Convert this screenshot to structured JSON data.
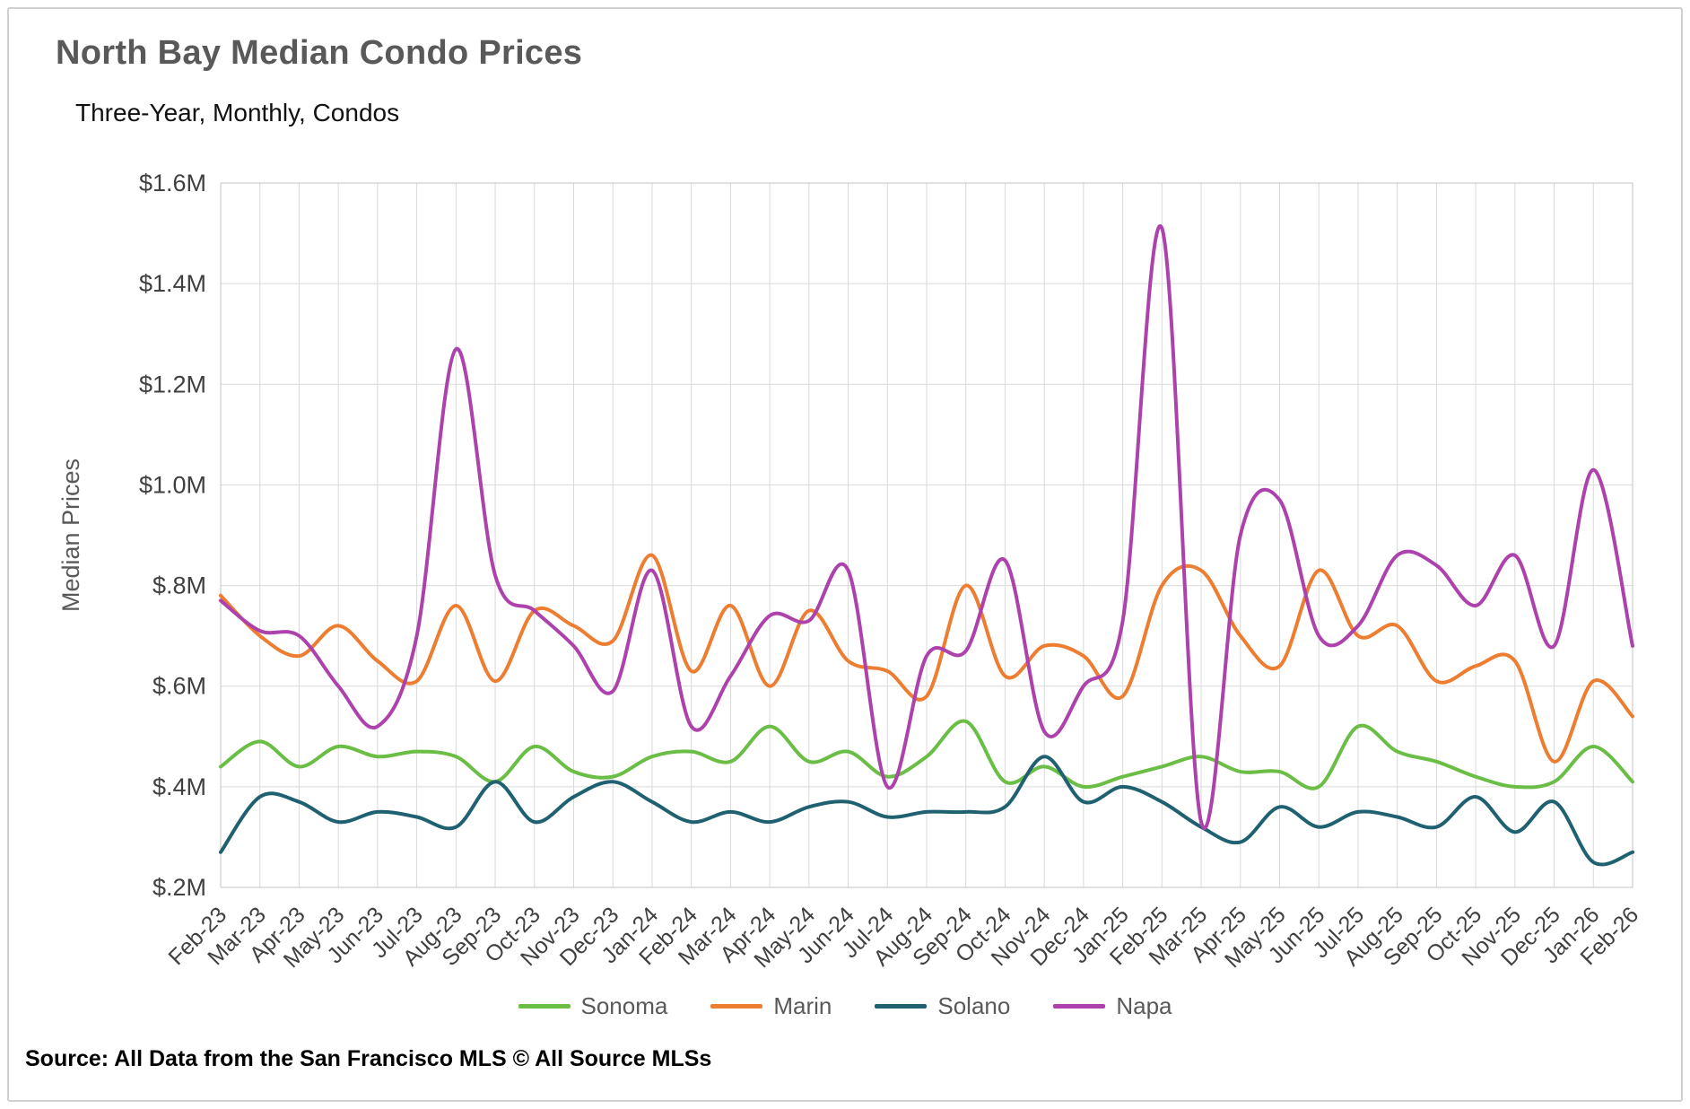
{
  "title": "North Bay Median Condo Prices",
  "subtitle": "Three-Year, Monthly, Condos",
  "source": "Source: All Data from the San Francisco MLS © All Source MLSs",
  "chart_data": {
    "type": "line",
    "title": "North Bay Median Condo Prices",
    "subtitle": "Three-Year, Monthly, Condos",
    "xlabel": "",
    "ylabel": "Median Prices",
    "y_unit": "millions USD",
    "ylim": [
      0.2,
      1.6
    ],
    "grid": true,
    "smooth_lines": true,
    "legend_position": "bottom",
    "gridline_color": "#d9d9d9",
    "tick_label_color": "#404040",
    "axis_title_color": "#595959",
    "ytick_values": [
      0.2,
      0.4,
      0.6,
      0.8,
      1.0,
      1.2,
      1.4,
      1.6
    ],
    "ytick_labels": [
      "$.2M",
      "$.4M",
      "$.6M",
      "$.8M",
      "$1.0M",
      "$1.2M",
      "$1.4M",
      "$1.6M"
    ],
    "categories": [
      "Feb-23",
      "Mar-23",
      "Apr-23",
      "May-23",
      "Jun-23",
      "Jul-23",
      "Aug-23",
      "Sep-23",
      "Oct-23",
      "Nov-23",
      "Dec-23",
      "Jan-24",
      "Feb-24",
      "Mar-24",
      "Apr-24",
      "May-24",
      "Jun-24",
      "Jul-24",
      "Aug-24",
      "Sep-24",
      "Oct-24",
      "Nov-24",
      "Dec-24",
      "Jan-25",
      "Feb-25",
      "Mar-25",
      "Apr-25",
      "May-25",
      "Jun-25",
      "Jul-25",
      "Aug-25",
      "Sep-25",
      "Oct-25",
      "Nov-25",
      "Dec-25",
      "Jan-26",
      "Feb-26"
    ],
    "series": [
      {
        "name": "Sonoma",
        "color": "#6BBE45",
        "values": [
          0.44,
          0.49,
          0.44,
          0.48,
          0.46,
          0.47,
          0.46,
          0.41,
          0.48,
          0.43,
          0.42,
          0.46,
          0.47,
          0.45,
          0.52,
          0.45,
          0.47,
          0.42,
          0.46,
          0.53,
          0.41,
          0.44,
          0.4,
          0.42,
          0.44,
          0.46,
          0.43,
          0.43,
          0.4,
          0.52,
          0.47,
          0.45,
          0.42,
          0.4,
          0.41,
          0.48,
          0.41
        ]
      },
      {
        "name": "Marin",
        "color": "#ED7D31",
        "values": [
          0.78,
          0.7,
          0.66,
          0.72,
          0.65,
          0.61,
          0.76,
          0.61,
          0.75,
          0.72,
          0.69,
          0.86,
          0.63,
          0.76,
          0.6,
          0.75,
          0.65,
          0.63,
          0.58,
          0.8,
          0.62,
          0.68,
          0.66,
          0.58,
          0.8,
          0.83,
          0.7,
          0.64,
          0.83,
          0.7,
          0.72,
          0.61,
          0.64,
          0.65,
          0.45,
          0.61,
          0.54
        ]
      },
      {
        "name": "Solano",
        "color": "#1F6170",
        "values": [
          0.27,
          0.38,
          0.37,
          0.33,
          0.35,
          0.34,
          0.32,
          0.41,
          0.33,
          0.38,
          0.41,
          0.37,
          0.33,
          0.35,
          0.33,
          0.36,
          0.37,
          0.34,
          0.35,
          0.35,
          0.36,
          0.46,
          0.37,
          0.4,
          0.37,
          0.32,
          0.29,
          0.36,
          0.32,
          0.35,
          0.34,
          0.32,
          0.38,
          0.31,
          0.37,
          0.25,
          0.27
        ]
      },
      {
        "name": "Napa",
        "color": "#AD42AD",
        "values": [
          0.77,
          0.71,
          0.7,
          0.6,
          0.52,
          0.7,
          1.27,
          0.82,
          0.75,
          0.68,
          0.59,
          0.83,
          0.52,
          0.62,
          0.74,
          0.73,
          0.83,
          0.4,
          0.66,
          0.67,
          0.85,
          0.51,
          0.6,
          0.73,
          1.51,
          0.33,
          0.9,
          0.97,
          0.7,
          0.72,
          0.86,
          0.84,
          0.76,
          0.86,
          0.68,
          1.03,
          0.68
        ]
      }
    ]
  }
}
